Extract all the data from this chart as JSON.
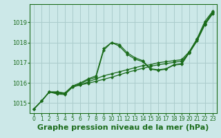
{
  "background_color": "#cce8e8",
  "plot_bg_color": "#cce8e8",
  "grid_color": "#aacccc",
  "line_color": "#1a6b1a",
  "xlabel": "Graphe pression niveau de la mer (hPa)",
  "xlabel_fontsize": 8,
  "xlim": [
    -0.5,
    23.5
  ],
  "ylim": [
    1014.5,
    1019.9
  ],
  "yticks": [
    1015,
    1016,
    1017,
    1018,
    1019
  ],
  "xticks": [
    0,
    1,
    2,
    3,
    4,
    5,
    6,
    7,
    8,
    9,
    10,
    11,
    12,
    13,
    14,
    15,
    16,
    17,
    18,
    19,
    20,
    21,
    22,
    23
  ],
  "series": [
    [
      1014.7,
      1015.1,
      1015.55,
      1015.55,
      1015.5,
      1015.85,
      1016.0,
      1016.2,
      1016.35,
      1017.7,
      1018.0,
      1017.9,
      1017.5,
      1017.25,
      1017.1,
      1016.7,
      1016.65,
      1016.7,
      1016.9,
      1016.95,
      1017.55,
      1018.2,
      1019.05,
      1019.55
    ],
    [
      1014.7,
      1015.1,
      1015.55,
      1015.5,
      1015.45,
      1015.8,
      1015.9,
      1016.05,
      1016.2,
      1016.35,
      1016.45,
      1016.55,
      1016.65,
      1016.75,
      1016.85,
      1016.9,
      1017.0,
      1017.05,
      1017.1,
      1017.15,
      1017.55,
      1018.15,
      1018.95,
      1019.5
    ],
    [
      1014.7,
      1015.1,
      1015.55,
      1015.45,
      1015.42,
      1015.8,
      1015.9,
      1015.98,
      1016.08,
      1016.18,
      1016.28,
      1016.4,
      1016.52,
      1016.62,
      1016.72,
      1016.82,
      1016.9,
      1016.95,
      1017.02,
      1017.08,
      1017.48,
      1018.08,
      1018.88,
      1019.42
    ],
    [
      1014.7,
      1015.1,
      1015.55,
      1015.55,
      1015.48,
      1015.85,
      1015.95,
      1016.15,
      1016.28,
      1017.62,
      1018.0,
      1017.82,
      1017.42,
      1017.18,
      1017.05,
      1016.68,
      1016.62,
      1016.68,
      1016.88,
      1016.92,
      1017.5,
      1018.15,
      1018.92,
      1019.48
    ]
  ]
}
